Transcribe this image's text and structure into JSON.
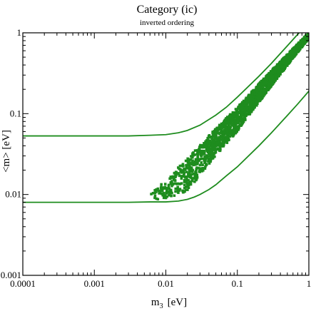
{
  "chart_data": {
    "type": "scatter",
    "title": "Category (ic)",
    "subtitle": "inverted ordering",
    "xlabel": {
      "main": "m",
      "sub": "3",
      "unit": "[eV]"
    },
    "ylabel": "<m>  [eV]",
    "x_scale": "log",
    "y_scale": "log",
    "xlim": [
      0.0001,
      1
    ],
    "ylim": [
      0.001,
      1
    ],
    "x_tick_labels": [
      "0.0001",
      "0.001",
      "0.01",
      "0.1",
      "1"
    ],
    "y_tick_labels": [
      "0.001",
      "0.01",
      "0.1",
      "1"
    ],
    "colors": {
      "series": "#1e8c1e",
      "axes": "#000000"
    },
    "series": [
      {
        "type": "line",
        "x": [
          0.0001,
          0.001,
          0.003,
          0.006,
          0.01,
          0.015,
          0.02,
          0.03,
          0.05,
          0.07,
          0.1,
          0.2,
          0.3,
          0.5,
          0.7,
          1
        ],
        "y": [
          0.053,
          0.053,
          0.053,
          0.054,
          0.055,
          0.058,
          0.062,
          0.072,
          0.096,
          0.12,
          0.16,
          0.29,
          0.42,
          0.69,
          0.96,
          1.36
        ]
      },
      {
        "type": "line",
        "x": [
          0.0001,
          0.001,
          0.003,
          0.006,
          0.01,
          0.015,
          0.02,
          0.025,
          0.03,
          0.04,
          0.05,
          0.07,
          0.1,
          0.2,
          0.3,
          0.5,
          0.7,
          1
        ],
        "y": [
          0.008,
          0.008,
          0.008,
          0.0081,
          0.0081,
          0.0083,
          0.0087,
          0.0093,
          0.01,
          0.0115,
          0.0132,
          0.017,
          0.022,
          0.04,
          0.058,
          0.095,
          0.132,
          0.19
        ]
      },
      {
        "type": "scatter_band",
        "x_range": [
          0.006,
          1
        ],
        "band_lower": [
          [
            0.006,
            0.0085
          ],
          [
            0.01,
            0.0088
          ],
          [
            0.02,
            0.011
          ],
          [
            0.05,
            0.03
          ],
          [
            0.1,
            0.06
          ],
          [
            0.3,
            0.22
          ],
          [
            1,
            0.85
          ]
        ],
        "band_upper": [
          [
            0.006,
            0.012
          ],
          [
            0.01,
            0.015
          ],
          [
            0.02,
            0.028
          ],
          [
            0.05,
            0.065
          ],
          [
            0.1,
            0.12
          ],
          [
            0.3,
            0.34
          ],
          [
            1,
            1.0
          ]
        ]
      }
    ]
  }
}
